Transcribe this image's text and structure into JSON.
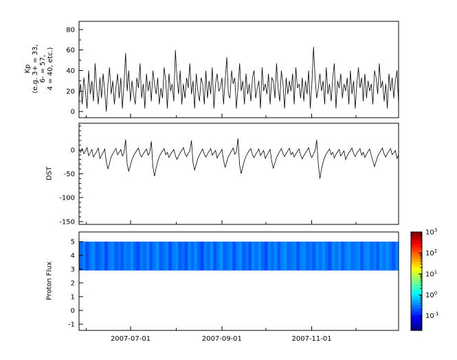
{
  "chart_data": {
    "type": "multi-panel-time-series",
    "x": {
      "range": [
        "2007-05-27",
        "2007-12-30"
      ],
      "ticks": [
        {
          "date": "2007-07-01",
          "label": "2007-07-01"
        },
        {
          "date": "2007-09-01",
          "label": "2007-09-01"
        },
        {
          "date": "2007-11-01",
          "label": "2007-11-01"
        }
      ],
      "minor_tick_months": [
        "2007-06-01",
        "2007-08-01",
        "2007-10-01",
        "2007-12-01"
      ]
    },
    "panels": [
      {
        "type": "line",
        "ylabel_lines": [
          "Kp",
          "(e.g. 3+ = 33,",
          "6- = 57,",
          "4 = 40, etc.)"
        ],
        "ylim": [
          -6,
          88
        ],
        "yticks": [
          0,
          20,
          40,
          60,
          80
        ],
        "minor_step": 10,
        "line_color": "#000000",
        "values": [
          13,
          27,
          7,
          33,
          20,
          3,
          40,
          17,
          30,
          10,
          47,
          23,
          7,
          33,
          13,
          37,
          20,
          0,
          27,
          43,
          17,
          30,
          7,
          23,
          37,
          13,
          33,
          3,
          27,
          57,
          20,
          40,
          10,
          30,
          17,
          7,
          33,
          23,
          47,
          13,
          27,
          3,
          37,
          20,
          30,
          10,
          40,
          27,
          17,
          33,
          7,
          23,
          13,
          43,
          30,
          3,
          37,
          20,
          27,
          10,
          60,
          33,
          17,
          40,
          7,
          27,
          13,
          33,
          23,
          47,
          17,
          30,
          3,
          37,
          20,
          10,
          33,
          27,
          7,
          40,
          13,
          30,
          17,
          43,
          3,
          27,
          37,
          20,
          23,
          33,
          7,
          30,
          53,
          17,
          13,
          40,
          27,
          33,
          3,
          23,
          47,
          20,
          30,
          7,
          37,
          17,
          27,
          10,
          33,
          40,
          13,
          23,
          30,
          3,
          43,
          20,
          27,
          17,
          37,
          7,
          33,
          30,
          13,
          47,
          23,
          10,
          40,
          27,
          3,
          33,
          17,
          30,
          20,
          37,
          7,
          43,
          23,
          27,
          13,
          33,
          10,
          30,
          17,
          40,
          3,
          27,
          63,
          33,
          13,
          23,
          37,
          20,
          30,
          7,
          43,
          17,
          27,
          10,
          33,
          47,
          3,
          30,
          23,
          37,
          13,
          27,
          20,
          33,
          7,
          40,
          17,
          30,
          3,
          27,
          43,
          23,
          33,
          10,
          37,
          13,
          30,
          20,
          27,
          7,
          40,
          33,
          17,
          47,
          23,
          30,
          10,
          27,
          3,
          37,
          20,
          33,
          13,
          30,
          40,
          7
        ]
      },
      {
        "type": "line",
        "ylabel": "DST",
        "ylim": [
          -156,
          56
        ],
        "yticks": [
          0,
          -50,
          -100,
          -150
        ],
        "minor_step": 10,
        "line_color": "#000000",
        "values": [
          2,
          -5,
          3,
          -8,
          -2,
          5,
          -12,
          -6,
          1,
          -15,
          -9,
          -3,
          4,
          -18,
          -11,
          -5,
          2,
          -25,
          -40,
          -28,
          -15,
          -8,
          -2,
          3,
          -10,
          -5,
          1,
          -13,
          -7,
          22,
          -30,
          -45,
          -32,
          -20,
          -12,
          -6,
          -1,
          4,
          -9,
          -15,
          -8,
          -3,
          2,
          -11,
          -6,
          18,
          -35,
          -55,
          -38,
          -24,
          -14,
          -7,
          -2,
          3,
          -10,
          -5,
          -16,
          -9,
          -4,
          1,
          -12,
          -20,
          -13,
          -6,
          -1,
          5,
          -8,
          -14,
          -7,
          -2,
          20,
          -28,
          -42,
          -30,
          -18,
          -10,
          -4,
          2,
          -9,
          -15,
          -8,
          -3,
          3,
          -11,
          -6,
          -1,
          -17,
          -10,
          -5,
          1,
          -22,
          -36,
          -25,
          -14,
          -8,
          -2,
          4,
          -9,
          -4,
          24,
          -32,
          -50,
          -35,
          -22,
          -13,
          -7,
          -1,
          3,
          -10,
          -16,
          -9,
          -4,
          2,
          -12,
          -6,
          -1,
          -18,
          -11,
          -5,
          1,
          -24,
          -38,
          -27,
          -16,
          -9,
          -3,
          3,
          -8,
          -14,
          -7,
          -2,
          4,
          -10,
          -5,
          -15,
          -8,
          -3,
          2,
          -11,
          -19,
          -12,
          -6,
          -1,
          5,
          -9,
          -16,
          -8,
          -2,
          21,
          -30,
          -60,
          -40,
          -26,
          -15,
          -8,
          -3,
          2,
          -10,
          -5,
          -17,
          -9,
          -4,
          1,
          -13,
          -7,
          -2,
          -20,
          -12,
          -6,
          -1,
          4,
          -8,
          -14,
          -7,
          -2,
          3,
          -11,
          -5,
          -16,
          -9,
          -3,
          2,
          -12,
          -23,
          -35,
          -24,
          -13,
          -7,
          -1,
          4,
          -9,
          -15,
          -8,
          -2,
          3,
          -10,
          -6,
          -1,
          -18,
          -10
        ]
      },
      {
        "type": "heatmap",
        "ylabel": "Proton Flux",
        "ylim": [
          -1.45,
          5.7
        ],
        "yticks": [
          5,
          4,
          3,
          2,
          1,
          0,
          -1
        ],
        "band_y": [
          2.9,
          5.0
        ],
        "values": [
          0.22,
          0.31,
          0.18,
          0.27,
          0.35,
          0.2,
          0.24,
          0.3,
          0.16,
          0.28,
          0.33,
          0.21,
          0.26,
          0.19,
          0.3,
          0.25,
          0.34,
          0.22,
          0.17,
          0.29,
          0.23,
          0.32,
          0.19,
          0.27,
          0.36,
          0.21,
          0.25,
          0.31,
          0.17,
          0.28,
          0.34,
          0.2,
          0.26,
          0.18,
          0.31,
          0.24,
          0.33,
          0.22,
          0.16,
          0.3,
          0.24,
          0.35,
          0.19,
          0.28,
          0.37,
          0.22,
          0.26,
          0.32,
          0.18,
          0.29,
          0.35,
          0.21,
          0.27,
          0.19,
          0.32,
          0.25,
          0.34,
          0.23,
          0.17,
          0.31,
          0.25,
          0.33,
          0.2,
          0.29,
          0.38,
          0.23,
          0.27,
          0.31,
          0.19,
          0.3,
          0.34,
          0.22,
          0.28,
          0.2,
          0.33,
          0.26,
          0.35,
          0.24,
          0.18,
          0.32,
          0.26,
          0.34,
          0.21,
          0.3,
          0.36,
          0.24,
          0.28,
          0.33,
          0.2,
          0.31,
          0.35,
          0.23,
          0.29,
          0.21,
          0.34,
          0.27,
          0.36,
          0.25,
          0.19,
          0.33
        ],
        "colorbar": {
          "scale": "log",
          "tick_exponents": [
            3,
            2,
            1,
            0,
            -1
          ],
          "log_range": [
            -1.7,
            3
          ],
          "colormap": "jet",
          "colormap_stops": [
            {
              "p": 0,
              "c": "#00007f"
            },
            {
              "p": 0.125,
              "c": "#0000ff"
            },
            {
              "p": 0.375,
              "c": "#00ffff"
            },
            {
              "p": 0.625,
              "c": "#ffff00"
            },
            {
              "p": 0.875,
              "c": "#ff0000"
            },
            {
              "p": 1,
              "c": "#7f0000"
            }
          ]
        }
      }
    ]
  }
}
